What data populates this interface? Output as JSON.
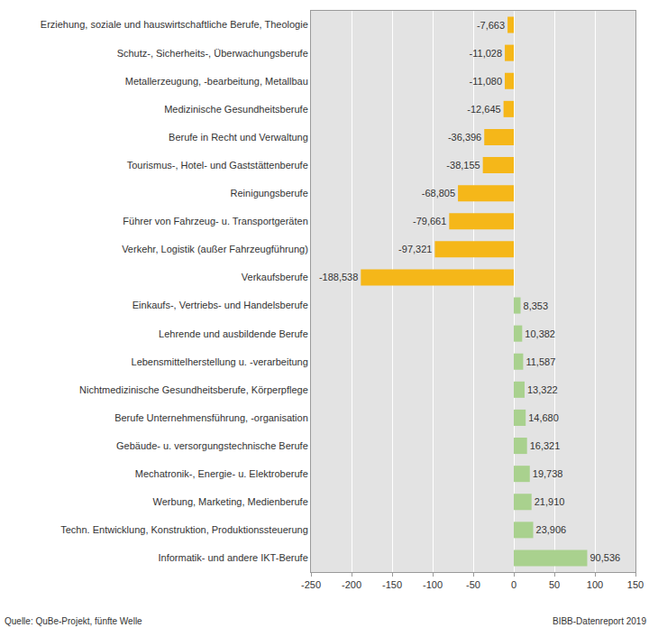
{
  "chart_data": {
    "type": "bar",
    "orientation": "horizontal",
    "categories": [
      "Erziehung, soziale und hauswirtschaftliche Berufe, Theologie",
      "Schutz-, Sicherheits-, Überwachungsberufe",
      "Metallerzeugung, -bearbeitung, Metallbau",
      "Medizinische Gesundheitsberufe",
      "Berufe in Recht und Verwaltung",
      "Tourismus-, Hotel- und Gaststättenberufe",
      "Reinigungsberufe",
      "Führer von Fahrzeug- u. Transportgeräten",
      "Verkehr, Logistik (außer Fahrzeugführung)",
      "Verkaufsberufe",
      "Einkaufs-, Vertriebs- und Handelsberufe",
      "Lehrende und ausbildende Berufe",
      "Lebensmittelherstellung u. -verarbeitung",
      "Nichtmedizinische Gesundheitsberufe, Körperpflege",
      "Berufe Unternehmensführung, -organisation",
      "Gebäude- u. versorgungstechnische Berufe",
      "Mechatronik-, Energie- u. Elektroberufe",
      "Werbung, Marketing, Medienberufe",
      "Techn. Entwicklung, Konstruktion, Produktionssteuerung",
      "Informatik- und andere IKT-Berufe"
    ],
    "values": [
      -7.663,
      -11.028,
      -11.08,
      -12.645,
      -36.396,
      -38.155,
      -68.805,
      -79.661,
      -97.321,
      -188.538,
      8.353,
      10.382,
      11.587,
      13.322,
      14.68,
      16.321,
      19.738,
      21.91,
      23.906,
      90.536
    ],
    "value_labels": [
      "-7,663",
      "-11,028",
      "-11,080",
      "-12,645",
      "-36,396",
      "-38,155",
      "-68,805",
      "-79,661",
      "-97,321",
      "-188,538",
      "8,353",
      "10,382",
      "11,587",
      "13,322",
      "14,680",
      "16,321",
      "19,738",
      "21,910",
      "23,906",
      "90,536"
    ],
    "data_labels": true,
    "colors": [
      "#f5b719",
      "#f5b719",
      "#f5b719",
      "#f5b719",
      "#f5b719",
      "#f5b719",
      "#f5b719",
      "#f5b719",
      "#f5b719",
      "#f5b719",
      "#a9d18e",
      "#a9d18e",
      "#a9d18e",
      "#a9d18e",
      "#a9d18e",
      "#a9d18e",
      "#a9d18e",
      "#a9d18e",
      "#a9d18e",
      "#a9d18e"
    ],
    "xlim": [
      -250,
      150
    ],
    "xticks": [
      -250,
      -200,
      -150,
      -100,
      -50,
      0,
      50,
      100,
      150
    ],
    "grid": true,
    "annotations": [
      "Quelle: QuBe-Projekt, fünfte Welle",
      "BIBB-Datenreport 2019"
    ]
  }
}
